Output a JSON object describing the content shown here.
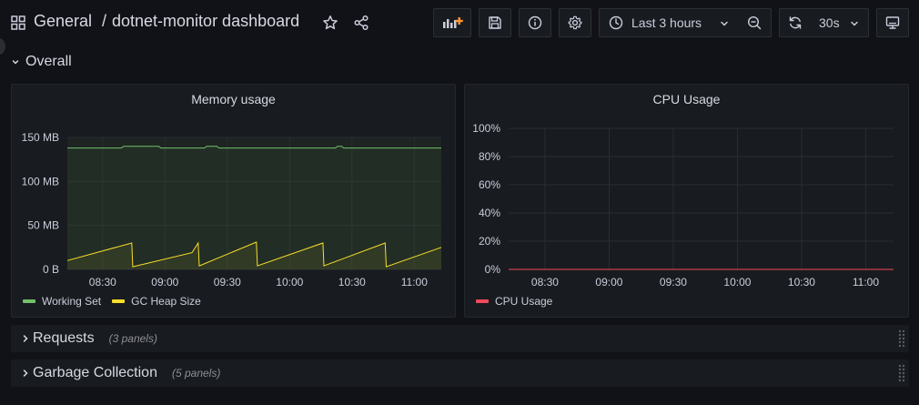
{
  "nav": {
    "folder": "General",
    "separator": "/",
    "title": "dotnet-monitor dashboard",
    "time_range": "Last 3 hours",
    "refresh_interval": "30s",
    "icons": [
      "grid-icon",
      "star-icon",
      "share-icon",
      "add-panel-icon",
      "save-icon",
      "info-icon",
      "gear-icon",
      "clock-icon",
      "zoom-out-icon",
      "refresh-icon",
      "tv-mode-icon"
    ]
  },
  "rows": {
    "overall": {
      "title": "Overall"
    },
    "requests": {
      "title": "Requests",
      "count": "(3 panels)"
    },
    "gc": {
      "title": "Garbage Collection",
      "count": "(5 panels)"
    }
  },
  "colors": {
    "working_set": "#73bf69",
    "gc_heap": "#fade2a",
    "cpu": "#f2495c",
    "grid": "#2a2d33"
  },
  "chart_data": [
    {
      "type": "line",
      "title": "Memory usage",
      "xlabel": "",
      "ylabel": "",
      "x_ticks": [
        "08:30",
        "09:00",
        "09:30",
        "10:00",
        "10:30",
        "11:00"
      ],
      "y_ticks": [
        "0 B",
        "50 MB",
        "100 MB",
        "150 MB"
      ],
      "ylim": [
        0,
        150
      ],
      "x_unit": "minutes after 08:00",
      "xlim": [
        13,
        193
      ],
      "legend_position": "bottom-left",
      "series": [
        {
          "name": "Working Set",
          "color": "#73bf69",
          "x": [
            13,
            39,
            40,
            57,
            58,
            79,
            80,
            85,
            86,
            142,
            143,
            145,
            146,
            193
          ],
          "y": [
            138,
            138,
            140,
            140,
            138,
            138,
            140,
            140,
            138,
            138,
            140,
            140,
            138,
            138
          ]
        },
        {
          "name": "GC Heap Size",
          "color": "#fade2a",
          "x": [
            13,
            44,
            44.5,
            73,
            76,
            76.5,
            104,
            104.5,
            136,
            136.5,
            166,
            166.5,
            193
          ],
          "y": [
            10,
            30,
            3,
            19,
            30,
            4,
            31,
            4,
            30,
            4,
            30,
            3,
            25
          ]
        }
      ]
    },
    {
      "type": "line",
      "title": "CPU Usage",
      "xlabel": "",
      "ylabel": "",
      "x_ticks": [
        "08:30",
        "09:00",
        "09:30",
        "10:00",
        "10:30",
        "11:00"
      ],
      "y_ticks": [
        "0%",
        "20%",
        "40%",
        "60%",
        "80%",
        "100%"
      ],
      "ylim": [
        0,
        100
      ],
      "x_unit": "minutes after 08:00",
      "xlim": [
        13,
        193
      ],
      "legend_position": "bottom-left",
      "series": [
        {
          "name": "CPU Usage",
          "color": "#f2495c",
          "x": [
            13,
            193
          ],
          "y": [
            0,
            0
          ]
        }
      ]
    }
  ]
}
